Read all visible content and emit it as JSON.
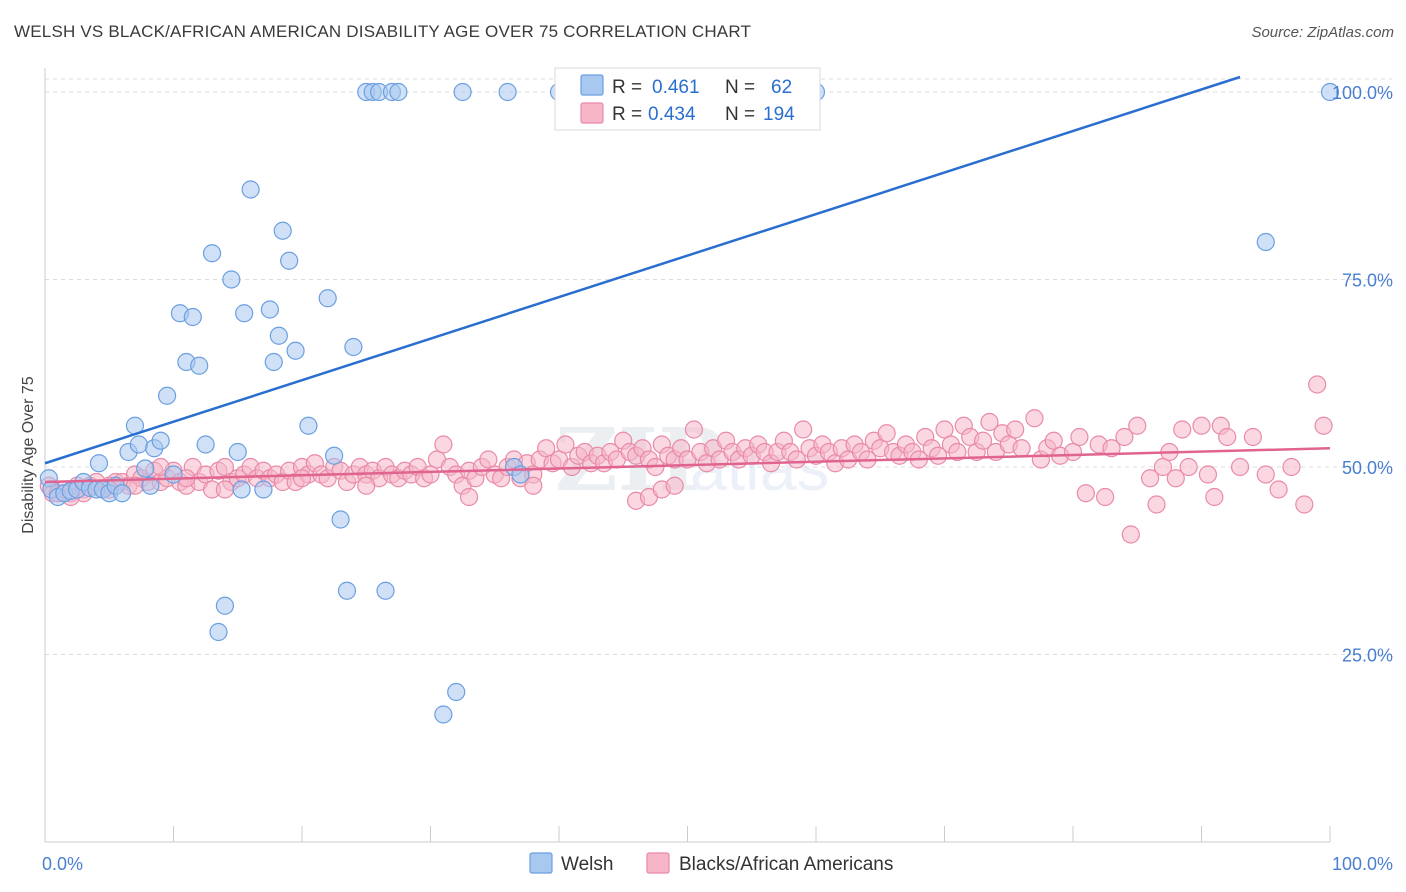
{
  "header": {
    "title": "WELSH VS BLACK/AFRICAN AMERICAN DISABILITY AGE OVER 75 CORRELATION CHART",
    "source": "Source: ZipAtlas.com"
  },
  "colors": {
    "welsh_fill": "#a9c8f0",
    "welsh_stroke": "#6a9fe0",
    "welsh_line": "#2a6fd0",
    "black_fill": "#f6b6c8",
    "black_stroke": "#e98aa8",
    "black_line": "#e0648f",
    "grid": "#dddddd",
    "tick_label": "#4a7fd0"
  },
  "chart_data": {
    "type": "scatter",
    "ylabel": "Disability Age Over 75",
    "xlim": [
      0,
      100
    ],
    "ylim": [
      0,
      104
    ],
    "x_tick_labels": [
      "0.0%",
      "100.0%"
    ],
    "y_ticks": [
      {
        "value": 25,
        "label": "25.0%"
      },
      {
        "value": 50,
        "label": "50.0%"
      },
      {
        "value": 75,
        "label": "75.0%"
      },
      {
        "value": 100,
        "label": "100.0%"
      }
    ],
    "grid": true,
    "legend_position": "top-center",
    "legend": [
      {
        "r_label": "R =",
        "r": "0.461",
        "n_label": "N =",
        "n": "62"
      },
      {
        "r_label": "R =",
        "r": "0.434",
        "n_label": "N =",
        "n": "194"
      }
    ],
    "series": [
      {
        "name": "Welsh",
        "trend": [
          [
            0,
            50.5
          ],
          [
            93,
            102
          ]
        ],
        "points": [
          [
            0.3,
            48.5
          ],
          [
            0.5,
            47
          ],
          [
            1,
            46
          ],
          [
            1.5,
            46.5
          ],
          [
            2,
            46.8
          ],
          [
            2.5,
            47
          ],
          [
            3,
            48
          ],
          [
            3.5,
            47.2
          ],
          [
            4,
            47
          ],
          [
            4.5,
            47
          ],
          [
            5,
            46.5
          ],
          [
            5.5,
            47.5
          ],
          [
            6,
            46.5
          ],
          [
            4.2,
            50.5
          ],
          [
            6.5,
            52
          ],
          [
            7,
            55.5
          ],
          [
            7.3,
            53
          ],
          [
            7.8,
            49.8
          ],
          [
            8.2,
            47.5
          ],
          [
            8.5,
            52.5
          ],
          [
            9,
            53.5
          ],
          [
            9.5,
            59.5
          ],
          [
            10,
            49
          ],
          [
            10.5,
            70.5
          ],
          [
            11,
            64
          ],
          [
            11.5,
            70
          ],
          [
            12,
            63.5
          ],
          [
            12.5,
            53
          ],
          [
            13,
            78.5
          ],
          [
            13.5,
            28
          ],
          [
            14,
            31.5
          ],
          [
            14.5,
            75
          ],
          [
            15,
            52
          ],
          [
            15.3,
            47
          ],
          [
            15.5,
            70.5
          ],
          [
            16,
            87
          ],
          [
            17,
            47
          ],
          [
            17.5,
            71
          ],
          [
            17.8,
            64
          ],
          [
            18.2,
            67.5
          ],
          [
            18.5,
            81.5
          ],
          [
            19,
            77.5
          ],
          [
            19.5,
            65.5
          ],
          [
            20.5,
            55.5
          ],
          [
            22,
            72.5
          ],
          [
            22.5,
            51.5
          ],
          [
            23,
            43
          ],
          [
            23.5,
            33.5
          ],
          [
            24,
            66
          ],
          [
            25,
            100
          ],
          [
            25.5,
            100
          ],
          [
            26,
            100
          ],
          [
            26.5,
            33.5
          ],
          [
            27,
            100
          ],
          [
            27.5,
            100
          ],
          [
            31,
            17
          ],
          [
            32,
            20
          ],
          [
            32.5,
            100
          ],
          [
            36,
            100
          ],
          [
            36.5,
            50
          ],
          [
            37,
            49
          ],
          [
            40,
            100
          ],
          [
            60,
            100
          ],
          [
            95,
            80
          ],
          [
            100,
            100
          ]
        ]
      },
      {
        "name": "Blacks/African Americans",
        "trend": [
          [
            0,
            48
          ],
          [
            100,
            52.5
          ]
        ],
        "points": [
          [
            0.3,
            47.5
          ],
          [
            0.6,
            46.5
          ],
          [
            1,
            46.5
          ],
          [
            1.5,
            47
          ],
          [
            2,
            46.5
          ],
          [
            2.5,
            47.5
          ],
          [
            3,
            47
          ],
          [
            3.5,
            47.5
          ],
          [
            4,
            48
          ],
          [
            4.5,
            47
          ],
          [
            5,
            47.5
          ],
          [
            5.5,
            48
          ],
          [
            6,
            48
          ],
          [
            6.5,
            47.5
          ],
          [
            7,
            49
          ],
          [
            7.5,
            48.5
          ],
          [
            8,
            48
          ],
          [
            8.5,
            49.5
          ],
          [
            9,
            48
          ],
          [
            9.5,
            48.5
          ],
          [
            10,
            49.5
          ],
          [
            10.5,
            48
          ],
          [
            11,
            47.5
          ],
          [
            11.5,
            50
          ],
          [
            12,
            48
          ],
          [
            12.5,
            49
          ],
          [
            13,
            47
          ],
          [
            13.5,
            49.5
          ],
          [
            14,
            50
          ],
          [
            14.5,
            48
          ],
          [
            15,
            48.5
          ],
          [
            15.5,
            49
          ],
          [
            16,
            50
          ],
          [
            16.5,
            48.5
          ],
          [
            17,
            49.5
          ],
          [
            17.5,
            48.5
          ],
          [
            18,
            49
          ],
          [
            18.5,
            48
          ],
          [
            19,
            49.5
          ],
          [
            19.5,
            48
          ],
          [
            20,
            50
          ],
          [
            20.5,
            49
          ],
          [
            21,
            50.5
          ],
          [
            21.5,
            49
          ],
          [
            22,
            48.5
          ],
          [
            22.5,
            50
          ],
          [
            23,
            49.5
          ],
          [
            23.5,
            48
          ],
          [
            24,
            49
          ],
          [
            24.5,
            50
          ],
          [
            25,
            49
          ],
          [
            25.5,
            49.5
          ],
          [
            26,
            48.5
          ],
          [
            26.5,
            50
          ],
          [
            27,
            49
          ],
          [
            27.5,
            48.5
          ],
          [
            28,
            49.5
          ],
          [
            28.5,
            49
          ],
          [
            29,
            50
          ],
          [
            29.5,
            48.5
          ],
          [
            30,
            49
          ],
          [
            30.5,
            51
          ],
          [
            31,
            53
          ],
          [
            31.5,
            50
          ],
          [
            32,
            49
          ],
          [
            32.5,
            47.5
          ],
          [
            33,
            49.5
          ],
          [
            33.5,
            48.5
          ],
          [
            34,
            50
          ],
          [
            34.5,
            51
          ],
          [
            35,
            49
          ],
          [
            35.5,
            48.5
          ],
          [
            36,
            50
          ],
          [
            36.5,
            51
          ],
          [
            37,
            48.5
          ],
          [
            37.5,
            50.5
          ],
          [
            38,
            49
          ],
          [
            38.5,
            51
          ],
          [
            39,
            52.5
          ],
          [
            39.5,
            50.5
          ],
          [
            40,
            51
          ],
          [
            40.5,
            53
          ],
          [
            41,
            50
          ],
          [
            41.5,
            51.5
          ],
          [
            42,
            52
          ],
          [
            42.5,
            50.5
          ],
          [
            43,
            51.5
          ],
          [
            43.5,
            50.5
          ],
          [
            44,
            52
          ],
          [
            44.5,
            51
          ],
          [
            45,
            53.5
          ],
          [
            45.5,
            52
          ],
          [
            46,
            51.5
          ],
          [
            46.5,
            52.5
          ],
          [
            47,
            51
          ],
          [
            47.5,
            50
          ],
          [
            48,
            53
          ],
          [
            48.5,
            51.5
          ],
          [
            49,
            51
          ],
          [
            49.5,
            52.5
          ],
          [
            50,
            51
          ],
          [
            50.5,
            55
          ],
          [
            51,
            52
          ],
          [
            51.5,
            50.5
          ],
          [
            52,
            52.5
          ],
          [
            52.5,
            51
          ],
          [
            53,
            53.5
          ],
          [
            53.5,
            52
          ],
          [
            54,
            51
          ],
          [
            54.5,
            52.5
          ],
          [
            55,
            51.5
          ],
          [
            55.5,
            53
          ],
          [
            56,
            52
          ],
          [
            56.5,
            50.5
          ],
          [
            57,
            52
          ],
          [
            57.5,
            53.5
          ],
          [
            58,
            52
          ],
          [
            58.5,
            51
          ],
          [
            59,
            55
          ],
          [
            59.5,
            52.5
          ],
          [
            60,
            51.5
          ],
          [
            60.5,
            53
          ],
          [
            61,
            52
          ],
          [
            61.5,
            50.5
          ],
          [
            62,
            52.5
          ],
          [
            62.5,
            51
          ],
          [
            63,
            53
          ],
          [
            63.5,
            52
          ],
          [
            64,
            51
          ],
          [
            64.5,
            53.5
          ],
          [
            65,
            52.5
          ],
          [
            65.5,
            54.5
          ],
          [
            66,
            52
          ],
          [
            66.5,
            51.5
          ],
          [
            67,
            53
          ],
          [
            67.5,
            52
          ],
          [
            68,
            51
          ],
          [
            68.5,
            54
          ],
          [
            69,
            52.5
          ],
          [
            69.5,
            51.5
          ],
          [
            70,
            55
          ],
          [
            70.5,
            53
          ],
          [
            71,
            52
          ],
          [
            71.5,
            55.5
          ],
          [
            72,
            54
          ],
          [
            72.5,
            52
          ],
          [
            73,
            53.5
          ],
          [
            73.5,
            56
          ],
          [
            74,
            52
          ],
          [
            74.5,
            54.5
          ],
          [
            75,
            53
          ],
          [
            75.5,
            55
          ],
          [
            76,
            52.5
          ],
          [
            77,
            56.5
          ],
          [
            77.5,
            51
          ],
          [
            78,
            52.5
          ],
          [
            78.5,
            53.5
          ],
          [
            79,
            51.5
          ],
          [
            80,
            52
          ],
          [
            80.5,
            54
          ],
          [
            81,
            46.5
          ],
          [
            82,
            53
          ],
          [
            82.5,
            46
          ],
          [
            83,
            52.5
          ],
          [
            84,
            54
          ],
          [
            84.5,
            41
          ],
          [
            85,
            55.5
          ],
          [
            86,
            48.5
          ],
          [
            86.5,
            45
          ],
          [
            87,
            50
          ],
          [
            87.5,
            52
          ],
          [
            88,
            48.5
          ],
          [
            88.5,
            55
          ],
          [
            89,
            50
          ],
          [
            90,
            55.5
          ],
          [
            90.5,
            49
          ],
          [
            91,
            46
          ],
          [
            91.5,
            55.5
          ],
          [
            92,
            54
          ],
          [
            93,
            50
          ],
          [
            94,
            54
          ],
          [
            95,
            49
          ],
          [
            96,
            47
          ],
          [
            97,
            50
          ],
          [
            98,
            45
          ],
          [
            99,
            61
          ],
          [
            99.5,
            55.5
          ],
          [
            46,
            45.5
          ],
          [
            47,
            46
          ],
          [
            48,
            47
          ],
          [
            49,
            47.5
          ],
          [
            38,
            47.5
          ],
          [
            33,
            46
          ],
          [
            25,
            47.5
          ],
          [
            20,
            48.5
          ],
          [
            14,
            47
          ],
          [
            11,
            48.5
          ],
          [
            9,
            50
          ],
          [
            7,
            47.5
          ],
          [
            5,
            47
          ],
          [
            3,
            46.5
          ],
          [
            2,
            46
          ]
        ]
      }
    ]
  }
}
